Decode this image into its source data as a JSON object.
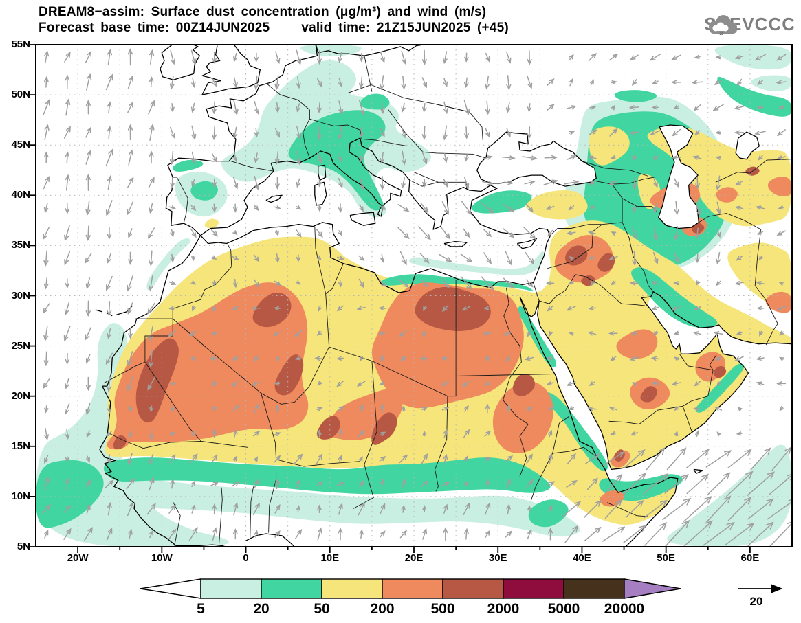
{
  "title": {
    "line1": "DREAM8−assim: Surface dust concentration (μg/m³) and wind (m/s)",
    "line2_left": "Forecast base time: 00Z14JUN2025",
    "line2_right": "valid time: 21Z15JUN2025 (+45)"
  },
  "logo": {
    "text": "SEEVCCC",
    "color": "#7e7e7e"
  },
  "axes": {
    "lat_labels": [
      "55N",
      "50N",
      "45N",
      "40N",
      "35N",
      "30N",
      "25N",
      "20N",
      "15N",
      "10N",
      "5N"
    ],
    "lon_labels": [
      "20W",
      "10W",
      "0",
      "10E",
      "20E",
      "30E",
      "40E",
      "50E",
      "60E"
    ]
  },
  "legend": {
    "values": [
      "5",
      "20",
      "50",
      "200",
      "500",
      "2000",
      "5000",
      "20000"
    ],
    "colors": {
      "below": "#ffffff",
      "bins": [
        "#c9efe2",
        "#41d6a1",
        "#f5e57a",
        "#ef8a5e",
        "#b65843",
        "#8e0d3c",
        "#46321c"
      ],
      "above": "#a57fc2"
    }
  },
  "wind": {
    "ref_label": "20",
    "arrow_color": "#a0a0a0"
  },
  "chart_data": {
    "type": "filled_contour_map",
    "title": "DREAM8-assim: Surface dust concentration (μg/m³) and wind (m/s)",
    "variable": "surface dust concentration",
    "units": "μg/m³",
    "wind_units": "m/s",
    "forecast_base_time": "00Z14JUN2025",
    "valid_time": "21Z15JUN2025",
    "forecast_step_hours": 45,
    "lat_axis": {
      "min": "5N",
      "max": "55N",
      "tick_interval_deg": 5
    },
    "lon_axis": {
      "min": "25W",
      "max": "65E",
      "labeled_tick_interval_deg": 10
    },
    "contour_levels_ug_m3": [
      5,
      20,
      50,
      200,
      500,
      2000,
      5000,
      20000
    ],
    "wind_reference_ms": 20,
    "high_dust_regions": [
      "western Sahara / Mauritania",
      "central Algeria",
      "Chad",
      "Libya–Egypt desert",
      "northern Sudan",
      "Syria–Iraq desert",
      "southern Arabian Peninsula"
    ],
    "low_dust_regions": [
      "central Europe (5–50)",
      "Sahel fringe (5–50)",
      "Black Sea – Caspian region (5–200)",
      "Atlantic off West Africa (5–50)"
    ]
  }
}
